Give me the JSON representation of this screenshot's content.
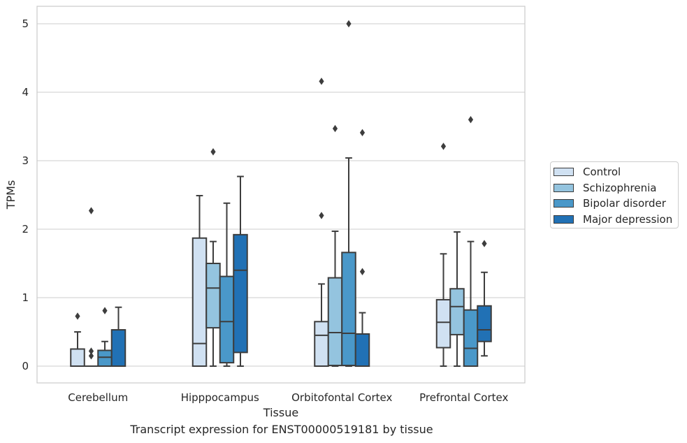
{
  "caption": "Transcript expression for ENST00000519181 by tissue",
  "chart_data": {
    "type": "box",
    "title": "",
    "xlabel": "Tissue",
    "ylabel": "TPMs",
    "ylim": [
      -0.25,
      5.25
    ],
    "yticks": [
      0,
      1,
      2,
      3,
      4,
      5
    ],
    "grid": "horizontal",
    "legend_position": "right",
    "categories": [
      "Cerebellum",
      "Hipppocampus",
      "Orbitofontal Cortex",
      "Prefrontal Cortex"
    ],
    "series": [
      {
        "name": "Control",
        "color": "#d0e1f2",
        "boxes": [
          {
            "whislo": 0,
            "q1": 0,
            "med": 0,
            "q3": 0.25,
            "whishi": 0.5,
            "fliers": [
              0.73
            ]
          },
          {
            "whislo": 0,
            "q1": 0,
            "med": 0.33,
            "q3": 1.87,
            "whishi": 2.49,
            "fliers": []
          },
          {
            "whislo": 0,
            "q1": 0,
            "med": 0.45,
            "q3": 0.65,
            "whishi": 1.2,
            "fliers": [
              2.2,
              4.16
            ]
          },
          {
            "whislo": 0,
            "q1": 0.27,
            "med": 0.64,
            "q3": 0.97,
            "whishi": 1.64,
            "fliers": [
              3.21
            ]
          }
        ]
      },
      {
        "name": "Schizophrenia",
        "color": "#94c4df",
        "boxes": [
          {
            "whislo": 0,
            "q1": 0,
            "med": 0,
            "q3": 0,
            "whishi": 0,
            "fliers": [
              0.15,
              0.22,
              2.27
            ]
          },
          {
            "whislo": 0,
            "q1": 0.56,
            "med": 1.14,
            "q3": 1.5,
            "whishi": 1.82,
            "fliers": [
              3.13
            ]
          },
          {
            "whislo": 0,
            "q1": 0.01,
            "med": 0.49,
            "q3": 1.29,
            "whishi": 1.97,
            "fliers": [
              3.47
            ]
          },
          {
            "whislo": 0,
            "q1": 0.46,
            "med": 0.87,
            "q3": 1.13,
            "whishi": 1.96,
            "fliers": []
          }
        ]
      },
      {
        "name": "Bipolar disorder",
        "color": "#4a98c9",
        "boxes": [
          {
            "whislo": 0,
            "q1": 0,
            "med": 0.13,
            "q3": 0.23,
            "whishi": 0.36,
            "fliers": [
              0.81
            ]
          },
          {
            "whislo": 0,
            "q1": 0.05,
            "med": 0.65,
            "q3": 1.31,
            "whishi": 2.38,
            "fliers": []
          },
          {
            "whislo": 0,
            "q1": 0.01,
            "med": 0.48,
            "q3": 1.66,
            "whishi": 3.04,
            "fliers": [
              5.0
            ]
          },
          {
            "whislo": 0,
            "q1": 0,
            "med": 0.26,
            "q3": 0.82,
            "whishi": 1.82,
            "fliers": [
              3.6
            ]
          }
        ]
      },
      {
        "name": "Major depression",
        "color": "#2171b5",
        "boxes": [
          {
            "whislo": 0,
            "q1": 0,
            "med": 0.53,
            "q3": 0.53,
            "whishi": 0.86,
            "fliers": []
          },
          {
            "whislo": 0,
            "q1": 0.2,
            "med": 1.4,
            "q3": 1.92,
            "whishi": 2.77,
            "fliers": []
          },
          {
            "whislo": 0,
            "q1": 0,
            "med": 0.47,
            "q3": 0.47,
            "whishi": 0.78,
            "fliers": [
              1.38,
              3.41
            ]
          },
          {
            "whislo": 0.15,
            "q1": 0.36,
            "med": 0.53,
            "q3": 0.88,
            "whishi": 1.37,
            "fliers": [
              1.79
            ]
          }
        ]
      }
    ]
  }
}
